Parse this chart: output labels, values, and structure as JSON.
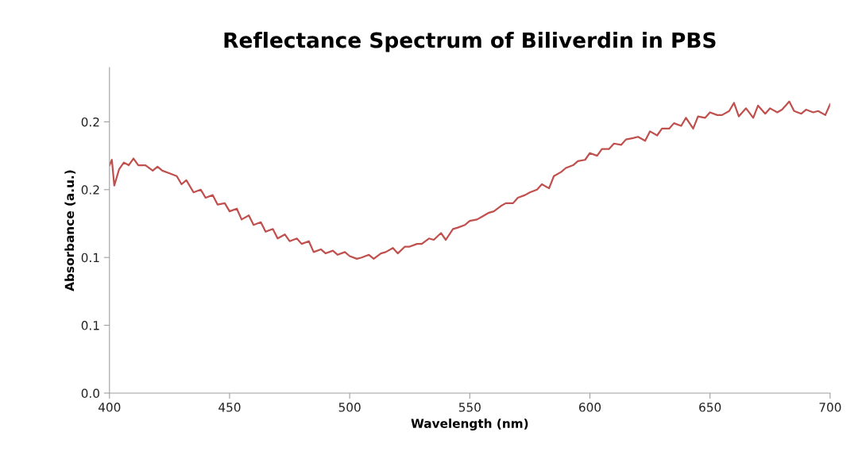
{
  "chart_data": {
    "type": "line",
    "title": "Reflectance Spectrum of Biliverdin in PBS",
    "xlabel": "Wavelength (nm)",
    "ylabel": "Absorbance (a.u.)",
    "xlim": [
      400,
      700
    ],
    "xticks": [
      400,
      450,
      500,
      550,
      600,
      650,
      700
    ],
    "ylim": [
      0,
      0.24
    ],
    "yticks": [
      {
        "value": 0,
        "label": "0.0"
      },
      {
        "value": 0.05,
        "label": "0.1"
      },
      {
        "value": 0.1,
        "label": "0.1"
      },
      {
        "value": 0.15,
        "label": "0.2"
      },
      {
        "value": 0.2,
        "label": "0.2"
      }
    ],
    "grid": false,
    "legend": false,
    "marker": "none",
    "line_style": "solid",
    "x": [
      400,
      401,
      402,
      404,
      406,
      408,
      410,
      412,
      415,
      418,
      420,
      422,
      425,
      428,
      430,
      432,
      435,
      438,
      440,
      443,
      445,
      448,
      450,
      453,
      455,
      458,
      460,
      463,
      465,
      468,
      470,
      473,
      475,
      478,
      480,
      483,
      485,
      488,
      490,
      493,
      495,
      498,
      500,
      503,
      505,
      508,
      510,
      513,
      515,
      518,
      520,
      523,
      525,
      528,
      530,
      533,
      535,
      538,
      540,
      543,
      545,
      548,
      550,
      553,
      555,
      558,
      560,
      563,
      565,
      568,
      570,
      573,
      575,
      578,
      580,
      583,
      585,
      588,
      590,
      593,
      595,
      598,
      600,
      603,
      605,
      608,
      610,
      613,
      615,
      618,
      620,
      623,
      625,
      628,
      630,
      633,
      635,
      638,
      640,
      643,
      645,
      648,
      650,
      653,
      655,
      658,
      660,
      662,
      665,
      668,
      670,
      673,
      675,
      678,
      680,
      682,
      683,
      685,
      688,
      690,
      693,
      695,
      698,
      700
    ],
    "series": [
      {
        "color": "#c0504d",
        "values": [
          0.168,
          0.172,
          0.153,
          0.165,
          0.17,
          0.168,
          0.173,
          0.168,
          0.168,
          0.164,
          0.167,
          0.164,
          0.162,
          0.16,
          0.154,
          0.157,
          0.148,
          0.15,
          0.144,
          0.146,
          0.139,
          0.14,
          0.134,
          0.136,
          0.128,
          0.131,
          0.124,
          0.126,
          0.119,
          0.121,
          0.114,
          0.117,
          0.112,
          0.114,
          0.11,
          0.112,
          0.104,
          0.106,
          0.103,
          0.105,
          0.102,
          0.104,
          0.101,
          0.099,
          0.1,
          0.102,
          0.099,
          0.103,
          0.104,
          0.107,
          0.103,
          0.108,
          0.108,
          0.11,
          0.11,
          0.114,
          0.113,
          0.118,
          0.113,
          0.121,
          0.122,
          0.124,
          0.127,
          0.128,
          0.13,
          0.133,
          0.134,
          0.138,
          0.14,
          0.14,
          0.144,
          0.146,
          0.148,
          0.15,
          0.154,
          0.151,
          0.16,
          0.163,
          0.166,
          0.168,
          0.171,
          0.172,
          0.177,
          0.175,
          0.18,
          0.18,
          0.184,
          0.183,
          0.187,
          0.188,
          0.189,
          0.186,
          0.193,
          0.19,
          0.195,
          0.195,
          0.199,
          0.197,
          0.203,
          0.195,
          0.204,
          0.203,
          0.207,
          0.205,
          0.205,
          0.208,
          0.214,
          0.204,
          0.21,
          0.203,
          0.212,
          0.206,
          0.21,
          0.207,
          0.209,
          0.213,
          0.215,
          0.208,
          0.206,
          0.209,
          0.207,
          0.208,
          0.205,
          0.213
        ]
      }
    ]
  }
}
